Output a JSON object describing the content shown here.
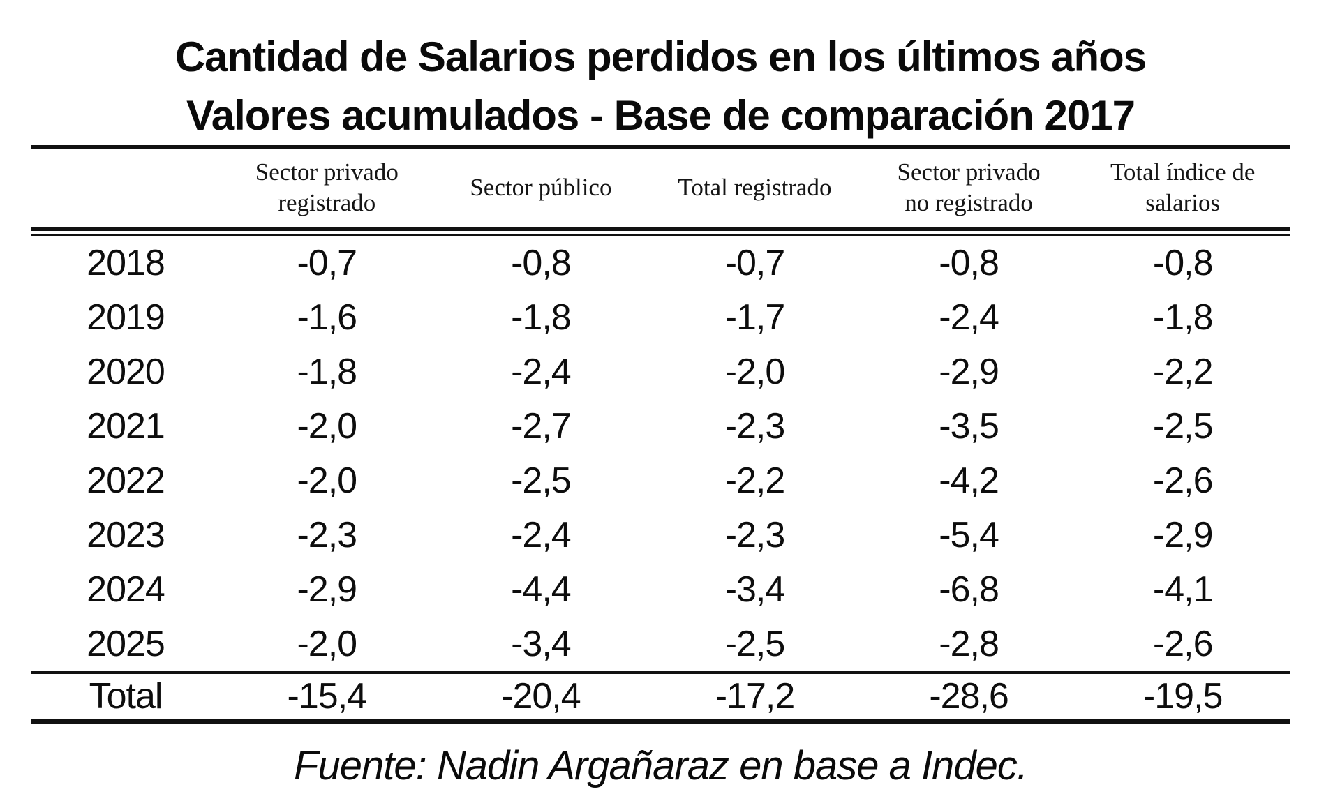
{
  "chart_data": {
    "type": "table",
    "title": "Cantidad de Salarios perdidos en los últimos años",
    "subtitle": "Valores acumulados - Base de comparación 2017",
    "columns": [
      "",
      "Sector privado registrado",
      "Sector público",
      "Total registrado",
      "Sector privado no registrado",
      "Total índice de salarios"
    ],
    "header_lines": [
      [
        "Sector privado",
        "registrado"
      ],
      [
        "Sector público"
      ],
      [
        "Total registrado"
      ],
      [
        "Sector privado",
        "no registrado"
      ],
      [
        "Total índice de",
        "salarios"
      ]
    ],
    "rows": [
      {
        "year": "2018",
        "values": [
          "-0,7",
          "-0,8",
          "-0,7",
          "-0,8",
          "-0,8"
        ]
      },
      {
        "year": "2019",
        "values": [
          "-1,6",
          "-1,8",
          "-1,7",
          "-2,4",
          "-1,8"
        ]
      },
      {
        "year": "2020",
        "values": [
          "-1,8",
          "-2,4",
          "-2,0",
          "-2,9",
          "-2,2"
        ]
      },
      {
        "year": "2021",
        "values": [
          "-2,0",
          "-2,7",
          "-2,3",
          "-3,5",
          "-2,5"
        ]
      },
      {
        "year": "2022",
        "values": [
          "-2,0",
          "-2,5",
          "-2,2",
          "-4,2",
          "-2,6"
        ]
      },
      {
        "year": "2023",
        "values": [
          "-2,3",
          "-2,4",
          "-2,3",
          "-5,4",
          "-2,9"
        ]
      },
      {
        "year": "2024",
        "values": [
          "-2,9",
          "-4,4",
          "-3,4",
          "-6,8",
          "-4,1"
        ]
      },
      {
        "year": "2025",
        "values": [
          "-2,0",
          "-3,4",
          "-2,5",
          "-2,8",
          "-2,6"
        ]
      },
      {
        "year": "Total",
        "values": [
          "-15,4",
          "-20,4",
          "-17,2",
          "-28,6",
          "-19,5"
        ]
      }
    ],
    "source": "Fuente: Nadin Argañaraz en base a Indec."
  }
}
